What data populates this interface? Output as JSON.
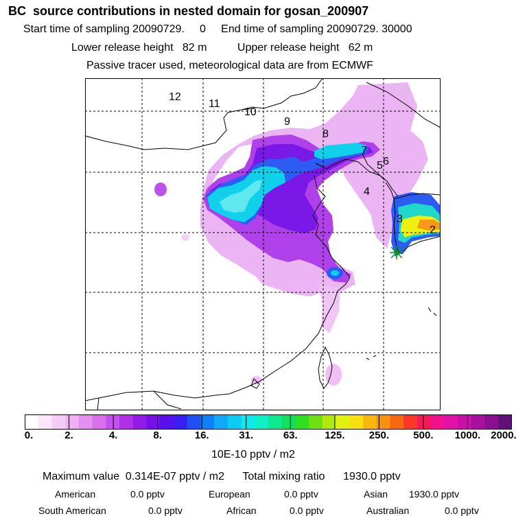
{
  "header": {
    "title": "BC  source contributions in nested domain for gosan_200907",
    "start_label": "Start time of sampling 20090729.     0",
    "end_label": "End time of sampling 20090729. 30000",
    "lower_label": "Lower release height   82 m",
    "upper_label": "Upper release height   62 m",
    "tracer_note": "Passive tracer used, meteorological data are from ECMWF"
  },
  "map": {
    "trajectory_labels": [
      "12",
      "11",
      "10",
      "9",
      "8",
      "7",
      "6",
      "5",
      "4",
      "3",
      "2"
    ],
    "colors": {
      "ocean": "#ffffff",
      "coast": "#000000",
      "grid": "#000000",
      "site_marker": "#00a000"
    }
  },
  "legend": {
    "tick_labels": [
      "0.",
      "2.",
      "4.",
      "8.",
      "16.",
      "31.",
      "63.",
      "125.",
      "250.",
      "500.",
      "1000.",
      "2000."
    ],
    "palette": [
      "#ffffff",
      "#fbe6fb",
      "#f6ccf6",
      "#f0b0f3",
      "#e590f0",
      "#d870ec",
      "#c650ea",
      "#b030e8",
      "#9418e6",
      "#7610e8",
      "#5810ea",
      "#3a20f0",
      "#2050f4",
      "#1080f8",
      "#10a8f8",
      "#10c8f4",
      "#10e8ec",
      "#10f0c8",
      "#10e890",
      "#10e060",
      "#30e020",
      "#70e010",
      "#b0e810",
      "#e0f010",
      "#f8e010",
      "#f8b810",
      "#f89010",
      "#f86810",
      "#f83828",
      "#f81858",
      "#f01090",
      "#e010a8",
      "#c810a8",
      "#a810a0",
      "#881090",
      "#601078"
    ],
    "units": "10E-10 pptv / m2"
  },
  "summary": {
    "max_value_label": "Maximum value  0.314E-07 pptv / m2",
    "total_label": "Total mixing ratio",
    "total_value": "1930.0 pptv",
    "regions": [
      {
        "name": "American",
        "value": "0.0 pptv"
      },
      {
        "name": "European",
        "value": "0.0 pptv"
      },
      {
        "name": "Asian",
        "value": "1930.0 pptv"
      },
      {
        "name": "South American",
        "value": "0.0 pptv"
      },
      {
        "name": "African",
        "value": "0.0 pptv"
      },
      {
        "name": "Australian",
        "value": "0.0 pptv"
      }
    ]
  }
}
